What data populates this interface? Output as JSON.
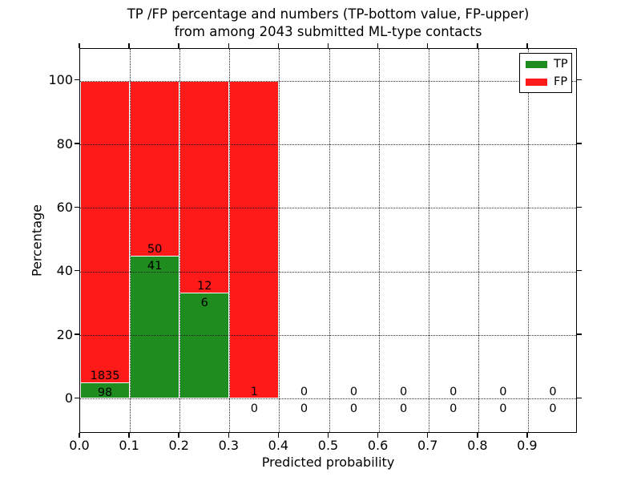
{
  "title": {
    "line1": "TP /FP percentage and numbers (TP-bottom value, FP-upper)",
    "line2": "from among 2043 submitted ML-type contacts"
  },
  "axes": {
    "xlabel": "Predicted probability",
    "ylabel": "Percentage",
    "xticks": [
      "0.0",
      "0.1",
      "0.2",
      "0.3",
      "0.4",
      "0.5",
      "0.6",
      "0.7",
      "0.8",
      "0.9"
    ],
    "xtick_values": [
      0.0,
      0.1,
      0.2,
      0.3,
      0.4,
      0.5,
      0.6,
      0.7,
      0.8,
      0.9
    ],
    "yticks": [
      "0",
      "20",
      "40",
      "60",
      "80",
      "100"
    ],
    "ytick_values": [
      0,
      20,
      40,
      60,
      80,
      100
    ]
  },
  "legend": {
    "items": [
      {
        "label": "TP",
        "color": "#1e8c1e"
      },
      {
        "label": "FP",
        "color": "#ff1a1a"
      }
    ]
  },
  "chart_data": {
    "type": "bar",
    "stacking": "percent",
    "title": "TP /FP percentage and numbers (TP-bottom value, FP-upper) from among 2043 submitted ML-type contacts",
    "xlabel": "Predicted probability",
    "ylabel": "Percentage",
    "xlim": [
      0.0,
      1.0
    ],
    "ylim": [
      -11,
      110
    ],
    "bin_width": 0.1,
    "grid": true,
    "legend_position": "upper right",
    "total_contacts": 2043,
    "series": [
      {
        "name": "TP",
        "color": "#1e8c1e",
        "position": "bottom"
      },
      {
        "name": "FP",
        "color": "#ff1a1a",
        "position": "top"
      }
    ],
    "bins": [
      {
        "range": [
          0.0,
          0.1
        ],
        "tp": 98,
        "fp": 1835,
        "tp_pct": 5.07,
        "fp_pct": 94.93,
        "has_bar": true
      },
      {
        "range": [
          0.1,
          0.2
        ],
        "tp": 41,
        "fp": 50,
        "tp_pct": 45.05,
        "fp_pct": 54.95,
        "has_bar": true
      },
      {
        "range": [
          0.2,
          0.3
        ],
        "tp": 6,
        "fp": 12,
        "tp_pct": 33.33,
        "fp_pct": 66.67,
        "has_bar": true
      },
      {
        "range": [
          0.3,
          0.4
        ],
        "tp": 0,
        "fp": 1,
        "tp_pct": 0.0,
        "fp_pct": 100.0,
        "has_bar": true
      },
      {
        "range": [
          0.4,
          0.5
        ],
        "tp": 0,
        "fp": 0,
        "tp_pct": 0.0,
        "fp_pct": 0.0,
        "has_bar": false
      },
      {
        "range": [
          0.5,
          0.6
        ],
        "tp": 0,
        "fp": 0,
        "tp_pct": 0.0,
        "fp_pct": 0.0,
        "has_bar": false
      },
      {
        "range": [
          0.6,
          0.7
        ],
        "tp": 0,
        "fp": 0,
        "tp_pct": 0.0,
        "fp_pct": 0.0,
        "has_bar": false
      },
      {
        "range": [
          0.7,
          0.8
        ],
        "tp": 0,
        "fp": 0,
        "tp_pct": 0.0,
        "fp_pct": 0.0,
        "has_bar": false
      },
      {
        "range": [
          0.8,
          0.9
        ],
        "tp": 0,
        "fp": 0,
        "tp_pct": 0.0,
        "fp_pct": 0.0,
        "has_bar": false
      },
      {
        "range": [
          0.9,
          1.0
        ],
        "tp": 0,
        "fp": 0,
        "tp_pct": 0.0,
        "fp_pct": 0.0,
        "has_bar": false
      }
    ]
  }
}
